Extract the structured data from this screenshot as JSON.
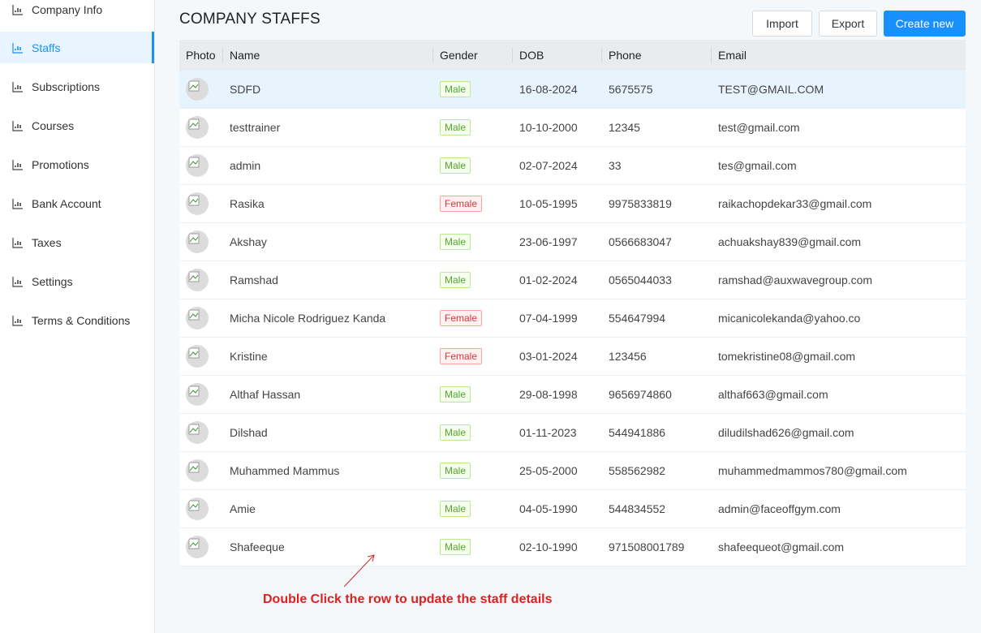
{
  "sidebar": {
    "items": [
      {
        "label": "Company Info",
        "icon": "chart-icon"
      },
      {
        "label": "Staffs",
        "icon": "chart-icon",
        "active": true
      },
      {
        "label": "Subscriptions",
        "icon": "chart-icon"
      },
      {
        "label": "Courses",
        "icon": "chart-icon"
      },
      {
        "label": "Promotions",
        "icon": "chart-icon"
      },
      {
        "label": "Bank Account",
        "icon": "chart-icon"
      },
      {
        "label": "Taxes",
        "icon": "chart-icon"
      },
      {
        "label": "Settings",
        "icon": "chart-icon"
      },
      {
        "label": "Terms & Conditions",
        "icon": "chart-icon"
      }
    ]
  },
  "header": {
    "title": "COMPANY STAFFS",
    "import_label": "Import",
    "export_label": "Export",
    "create_label": "Create new"
  },
  "table": {
    "columns": [
      "Photo",
      "Name",
      "Gender",
      "DOB",
      "Phone",
      "Email"
    ],
    "rows": [
      {
        "name": "SDFD",
        "gender": "Male",
        "dob": "16-08-2024",
        "phone": "5675575",
        "email": "TEST@GMAIL.COM"
      },
      {
        "name": "testtrainer",
        "gender": "Male",
        "dob": "10-10-2000",
        "phone": "12345",
        "email": "test@gmail.com"
      },
      {
        "name": "admin",
        "gender": "Male",
        "dob": "02-07-2024",
        "phone": "33",
        "email": "tes@gmail.com"
      },
      {
        "name": "Rasika",
        "gender": "Female",
        "dob": "10-05-1995",
        "phone": "9975833819",
        "email": "raikachopdekar33@gmail.com"
      },
      {
        "name": "Akshay",
        "gender": "Male",
        "dob": "23-06-1997",
        "phone": "0566683047",
        "email": "achuakshay839@gmail.com"
      },
      {
        "name": "Ramshad",
        "gender": "Male",
        "dob": "01-02-2024",
        "phone": "0565044033",
        "email": "ramshad@auxwavegroup.com"
      },
      {
        "name": "Micha Nicole Rodriguez Kanda",
        "gender": "Female",
        "dob": "07-04-1999",
        "phone": "554647994",
        "email": "micanicolekanda@yahoo.co"
      },
      {
        "name": "Kristine",
        "gender": "Female",
        "dob": "03-01-2024",
        "phone": "123456",
        "email": "tomekristine08@gmail.com"
      },
      {
        "name": "Althaf Hassan",
        "gender": "Male",
        "dob": "29-08-1998",
        "phone": "9656974860",
        "email": "althaf663@gmail.com"
      },
      {
        "name": "Dilshad",
        "gender": "Male",
        "dob": "01-11-2023",
        "phone": "544941886",
        "email": "diludilshad626@gmail.com"
      },
      {
        "name": "Muhammed Mammus",
        "gender": "Male",
        "dob": "25-05-2000",
        "phone": "558562982",
        "email": "muhammedmammos780@gmail.com"
      },
      {
        "name": "Amie",
        "gender": "Male",
        "dob": "04-05-1990",
        "phone": "544834552",
        "email": "admin@faceoffgym.com"
      },
      {
        "name": "Shafeeque",
        "gender": "Male",
        "dob": "02-10-1990",
        "phone": "971508001789",
        "email": "shafeequeot@gmail.com"
      }
    ]
  },
  "annotation": {
    "text": "Double Click the row to update the staff details",
    "color": "#e02020"
  },
  "colors": {
    "accent": "#1890ff",
    "male_tag": "#52a52d",
    "female_tag": "#d9363e",
    "highlight_row": "#e8f4fd"
  }
}
